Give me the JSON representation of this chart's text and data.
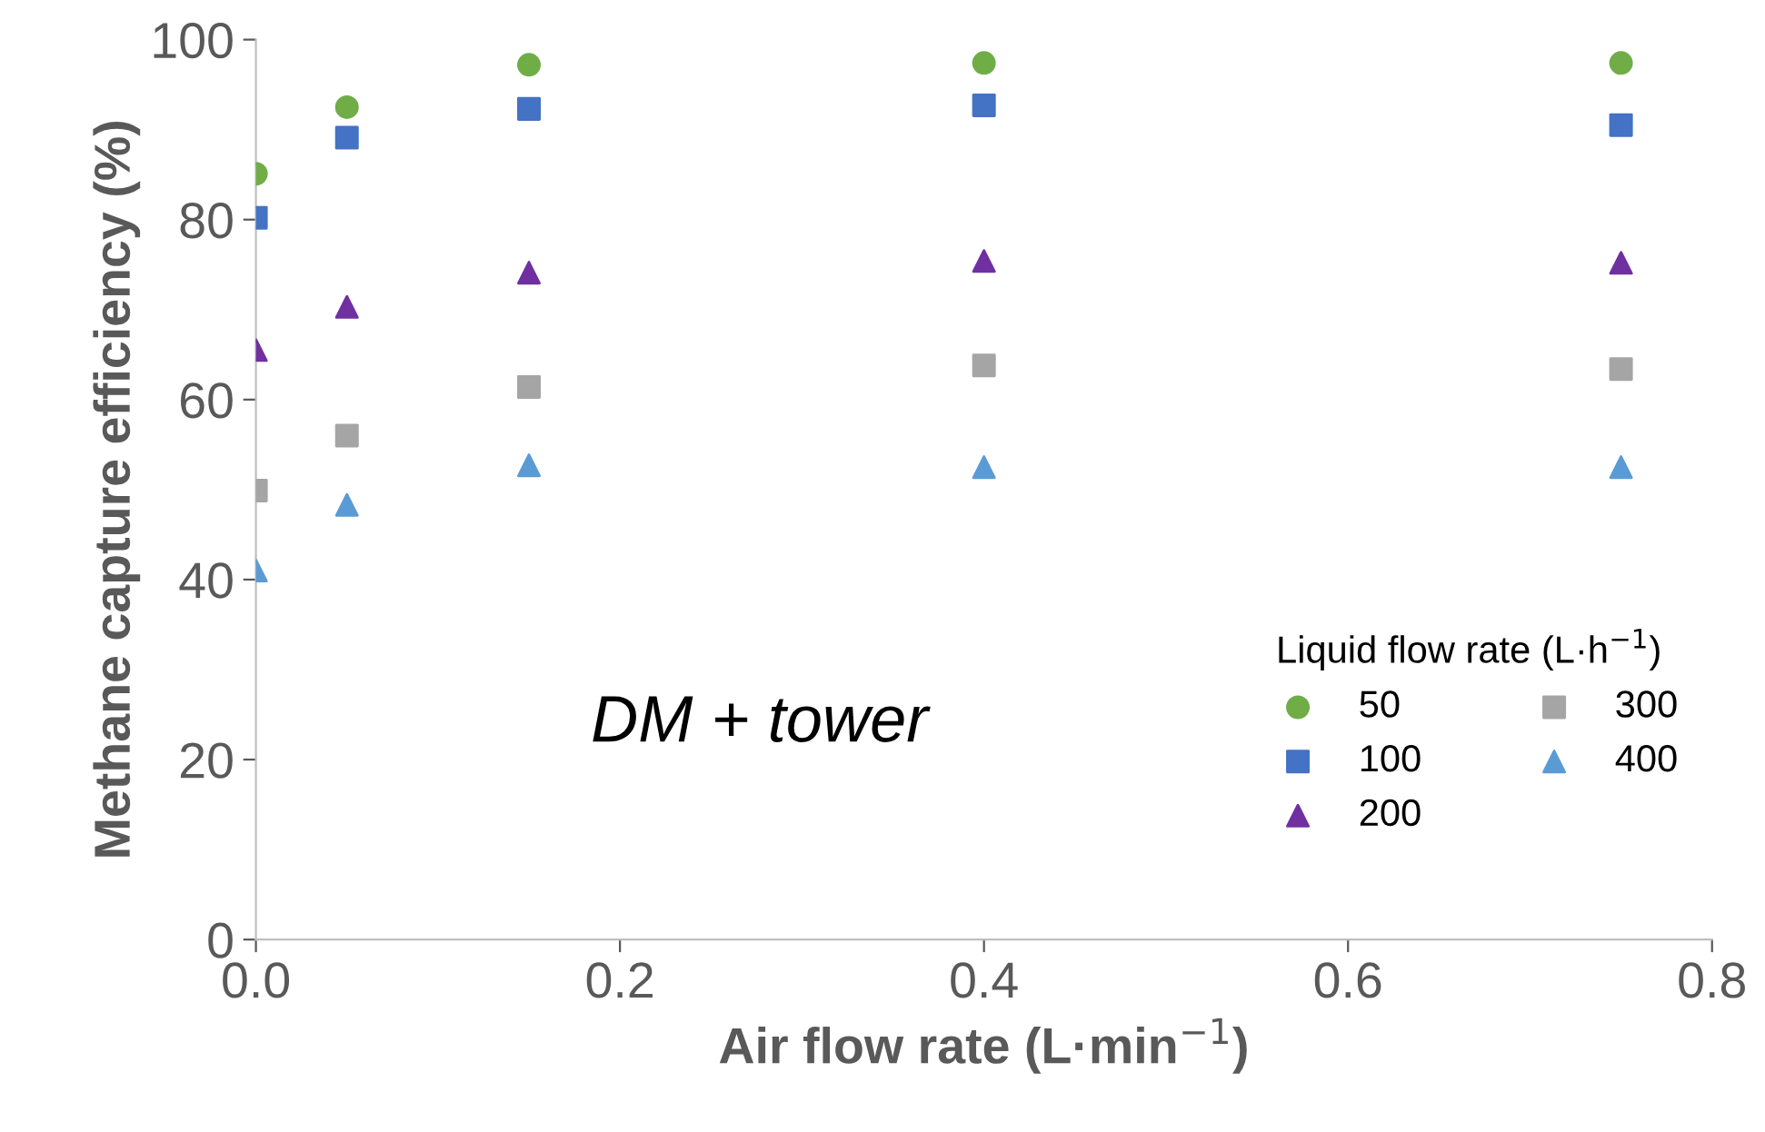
{
  "chart_data": {
    "type": "scatter",
    "xlabel": "Air flow rate (L·min$^{−1}$)",
    "ylabel": "Methane capture efficiency (%)",
    "legend_title": "Liquid flow rate (L·h$^{−1}$)",
    "annotations": [
      "DM + tower"
    ],
    "x": [
      0,
      0.05,
      0.15,
      0.4,
      0.75
    ],
    "series": [
      {
        "name": "50",
        "color": "#70ad47",
        "marker": "circle",
        "values": [
          85.1,
          92.5,
          97.2,
          97.4,
          97.4
        ]
      },
      {
        "name": "100",
        "color": "#4472c4",
        "marker": "square",
        "values": [
          80.2,
          89.1,
          92.3,
          92.7,
          90.5
        ]
      },
      {
        "name": "200",
        "color": "#7030a0",
        "marker": "triangle",
        "values": [
          65.5,
          70.3,
          74.1,
          75.4,
          75.2
        ]
      },
      {
        "name": "300",
        "color": "#a5a5a5",
        "marker": "square",
        "values": [
          49.9,
          56.0,
          61.4,
          63.8,
          63.4
        ]
      },
      {
        "name": "400",
        "color": "#5b9bd5",
        "marker": "triangle",
        "values": [
          41.0,
          48.3,
          52.7,
          52.5,
          52.5
        ]
      }
    ],
    "xlim": [
      0,
      0.8
    ],
    "xticks": [
      {
        "value": 0,
        "label": "0.0"
      },
      0.2,
      0.4,
      0.6,
      0.8
    ],
    "ylim": [
      0,
      100
    ],
    "yticks": [
      0,
      20,
      40,
      60,
      80,
      100
    ],
    "grid": false,
    "legend": "bottom right"
  }
}
